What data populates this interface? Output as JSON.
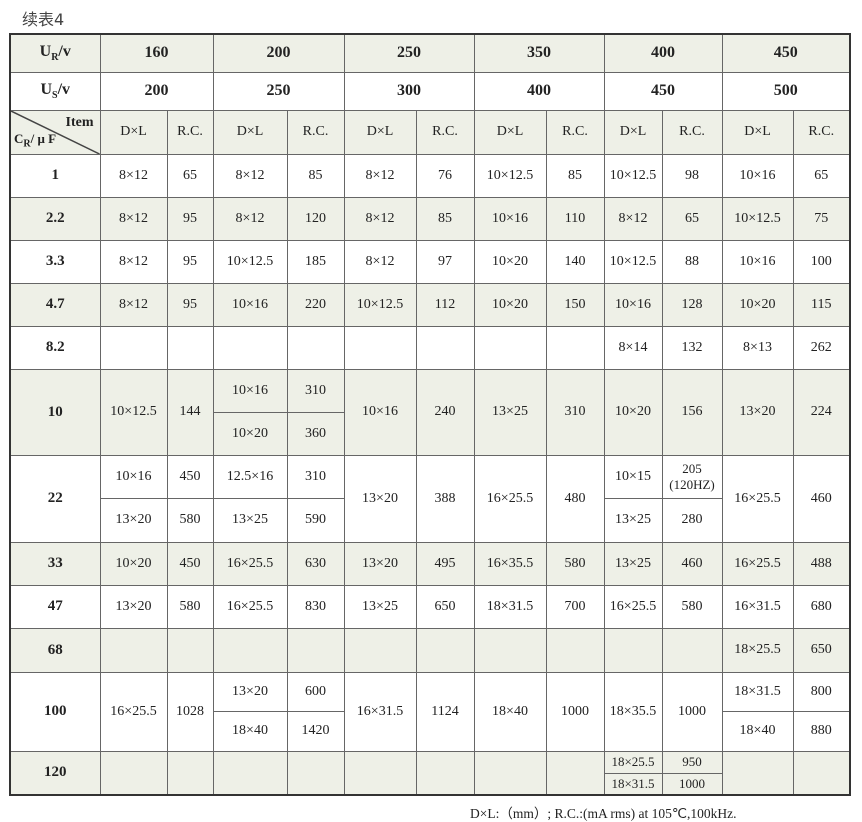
{
  "title": "续表4",
  "header": {
    "ur_label": "U",
    "ur_sub": "R",
    "ur_unit": "/v",
    "us_label": "U",
    "us_sub": "S",
    "us_unit": "/v",
    "item_label": "Item",
    "cr_label": "C",
    "cr_sub": "R",
    "cr_unit": "/ μ F",
    "ur_values": [
      "160",
      "200",
      "250",
      "350",
      "400",
      "450"
    ],
    "us_values": [
      "200",
      "250",
      "300",
      "400",
      "450",
      "500"
    ],
    "col_dl": "D×L",
    "col_rc": "R.C."
  },
  "rows": [
    {
      "cr": "1",
      "g": [
        {
          "d": "8×12",
          "rc": "65"
        },
        {
          "d": "8×12",
          "rc": "85"
        },
        {
          "d": "8×12",
          "rc": "76"
        },
        {
          "d": "10×12.5",
          "rc": "85"
        },
        {
          "d": "10×12.5",
          "rc": "98"
        },
        {
          "d": "10×16",
          "rc": "65"
        }
      ]
    },
    {
      "cr": "2.2",
      "g": [
        {
          "d": "8×12",
          "rc": "95"
        },
        {
          "d": "8×12",
          "rc": "120"
        },
        {
          "d": "8×12",
          "rc": "85"
        },
        {
          "d": "10×16",
          "rc": "110"
        },
        {
          "d": "8×12",
          "rc": "65"
        },
        {
          "d": "10×12.5",
          "rc": "75"
        }
      ]
    },
    {
      "cr": "3.3",
      "g": [
        {
          "d": "8×12",
          "rc": "95"
        },
        {
          "d": "10×12.5",
          "rc": "185"
        },
        {
          "d": "8×12",
          "rc": "97"
        },
        {
          "d": "10×20",
          "rc": "140"
        },
        {
          "d": "10×12.5",
          "rc": "88"
        },
        {
          "d": "10×16",
          "rc": "100"
        }
      ]
    },
    {
      "cr": "4.7",
      "g": [
        {
          "d": "8×12",
          "rc": "95"
        },
        {
          "d": "10×16",
          "rc": "220"
        },
        {
          "d": "10×12.5",
          "rc": "112"
        },
        {
          "d": "10×20",
          "rc": "150"
        },
        {
          "d": "10×16",
          "rc": "128"
        },
        {
          "d": "10×20",
          "rc": "115"
        }
      ]
    },
    {
      "cr": "8.2",
      "g": [
        {
          "d": "",
          "rc": ""
        },
        {
          "d": "",
          "rc": ""
        },
        {
          "d": "",
          "rc": ""
        },
        {
          "d": "",
          "rc": ""
        },
        {
          "d": "8×14",
          "rc": "132"
        },
        {
          "d": "8×13",
          "rc": "262"
        }
      ]
    },
    {
      "cr": "10",
      "g": [
        {
          "d": "10×12.5",
          "rc": "144"
        },
        {
          "sub": [
            {
              "d": "10×16",
              "rc": "310"
            },
            {
              "d": "10×20",
              "rc": "360"
            }
          ]
        },
        {
          "d": "10×16",
          "rc": "240"
        },
        {
          "d": "13×25",
          "rc": "310"
        },
        {
          "d": "10×20",
          "rc": "156"
        },
        {
          "d": "13×20",
          "rc": "224"
        }
      ]
    },
    {
      "cr": "22",
      "g": [
        {
          "sub": [
            {
              "d": "10×16",
              "rc": "450"
            },
            {
              "d": "13×20",
              "rc": "580"
            }
          ]
        },
        {
          "sub": [
            {
              "d": "12.5×16",
              "rc": "310"
            },
            {
              "d": "13×25",
              "rc": "590"
            }
          ]
        },
        {
          "d": "13×20",
          "rc": "388"
        },
        {
          "d": "16×25.5",
          "rc": "480"
        },
        {
          "sub": [
            {
              "d": "10×15",
              "rc": "205 (120HZ)"
            },
            {
              "d": "13×25",
              "rc": "280"
            }
          ]
        },
        {
          "d": "16×25.5",
          "rc": "460"
        }
      ]
    },
    {
      "cr": "33",
      "g": [
        {
          "d": "10×20",
          "rc": "450"
        },
        {
          "d": "16×25.5",
          "rc": "630"
        },
        {
          "d": "13×20",
          "rc": "495"
        },
        {
          "d": "16×35.5",
          "rc": "580"
        },
        {
          "d": "13×25",
          "rc": "460"
        },
        {
          "d": "16×25.5",
          "rc": "488"
        }
      ]
    },
    {
      "cr": "47",
      "g": [
        {
          "d": "13×20",
          "rc": "580"
        },
        {
          "d": "16×25.5",
          "rc": "830"
        },
        {
          "d": "13×25",
          "rc": "650"
        },
        {
          "d": "18×31.5",
          "rc": "700"
        },
        {
          "d": "16×25.5",
          "rc": "580"
        },
        {
          "d": "16×31.5",
          "rc": "680"
        }
      ]
    },
    {
      "cr": "68",
      "g": [
        {
          "d": "",
          "rc": ""
        },
        {
          "d": "",
          "rc": ""
        },
        {
          "d": "",
          "rc": ""
        },
        {
          "d": "",
          "rc": ""
        },
        {
          "d": "",
          "rc": ""
        },
        {
          "d": "18×25.5",
          "rc": "650"
        }
      ]
    },
    {
      "cr": "100",
      "g": [
        {
          "d": "16×25.5",
          "rc": "1028"
        },
        {
          "sub": [
            {
              "d": "13×20",
              "rc": "600"
            },
            {
              "d": "18×40",
              "rc": "1420"
            }
          ]
        },
        {
          "d": "16×31.5",
          "rc": "1124"
        },
        {
          "d": "18×40",
          "rc": "1000"
        },
        {
          "d": "18×35.5",
          "rc": "1000"
        },
        {
          "sub": [
            {
              "d": "18×31.5",
              "rc": "800"
            },
            {
              "d": "18×40",
              "rc": "880"
            }
          ]
        }
      ]
    },
    {
      "cr": "120",
      "g": [
        {
          "d": "",
          "rc": ""
        },
        {
          "d": "",
          "rc": ""
        },
        {
          "d": "",
          "rc": ""
        },
        {
          "d": "",
          "rc": ""
        },
        {
          "sub": [
            {
              "d": "18×25.5",
              "rc": "950"
            },
            {
              "d": "18×31.5",
              "rc": "1000"
            }
          ]
        },
        {
          "d": "",
          "rc": ""
        }
      ]
    }
  ],
  "footnote": "D×L:（mm）;   R.C.:(mA rms) at 105℃,100kHz."
}
